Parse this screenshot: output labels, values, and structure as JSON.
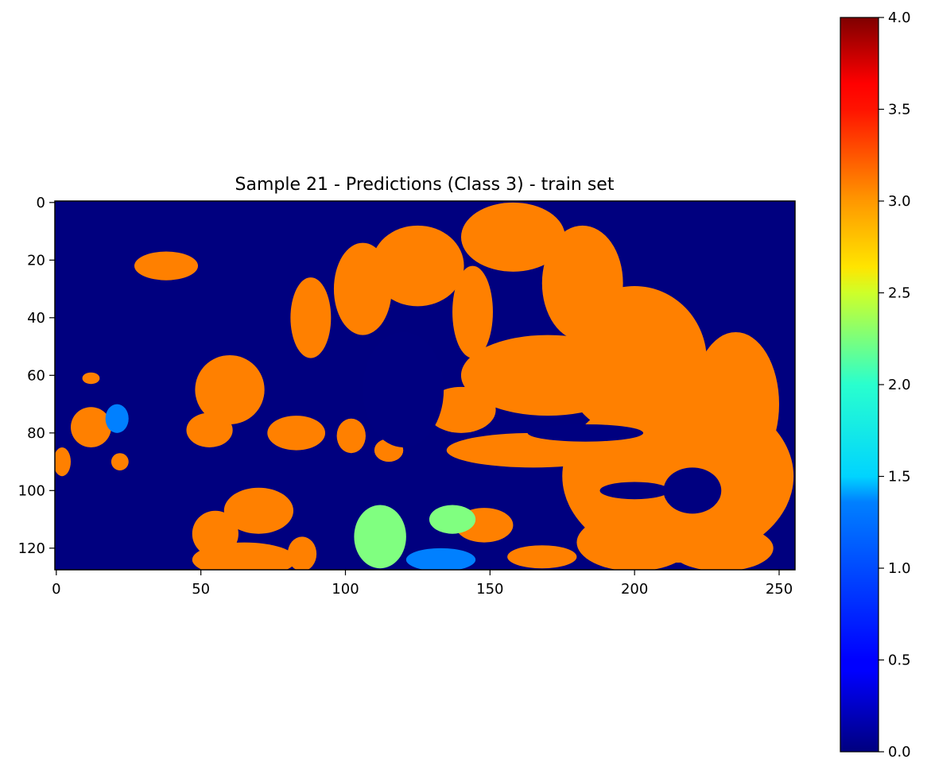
{
  "chart_data": [
    {
      "type": "heatmap",
      "title": "Sample 21 - Predictions (Class 3) - train set",
      "xlabel": "",
      "ylabel": "",
      "xlim": [
        -0.5,
        255.5
      ],
      "ylim": [
        127.5,
        -0.5
      ],
      "x_ticks": [
        0,
        50,
        100,
        150,
        200,
        250
      ],
      "y_ticks": [
        0,
        20,
        40,
        60,
        80,
        100,
        120
      ],
      "grid": false,
      "colormap": "jet",
      "value_range": [
        0,
        4
      ],
      "dominant_values": [
        0,
        3
      ],
      "regions": [
        {
          "shape": "ellipse",
          "value": 3,
          "cx": 12,
          "cy": 78,
          "rx": 7,
          "ry": 7
        },
        {
          "shape": "ellipse",
          "value": 1,
          "cx": 21,
          "cy": 75,
          "rx": 4,
          "ry": 5
        },
        {
          "shape": "ellipse",
          "value": 3,
          "cx": 12,
          "cy": 61,
          "rx": 3,
          "ry": 2
        },
        {
          "shape": "ellipse",
          "value": 3,
          "cx": 2,
          "cy": 90,
          "rx": 3,
          "ry": 5
        },
        {
          "shape": "ellipse",
          "value": 3,
          "cx": 22,
          "cy": 90,
          "rx": 3,
          "ry": 3
        },
        {
          "shape": "ellipse",
          "value": 3,
          "cx": 53,
          "cy": 79,
          "rx": 8,
          "ry": 6
        },
        {
          "shape": "ellipse",
          "value": 3,
          "cx": 60,
          "cy": 65,
          "rx": 12,
          "ry": 12
        },
        {
          "shape": "ellipse",
          "value": 3,
          "cx": 38,
          "cy": 22,
          "rx": 11,
          "ry": 5
        },
        {
          "shape": "ellipse",
          "value": 3,
          "cx": 83,
          "cy": 80,
          "rx": 10,
          "ry": 6
        },
        {
          "shape": "ellipse",
          "value": 3,
          "cx": 102,
          "cy": 81,
          "rx": 5,
          "ry": 6
        },
        {
          "shape": "ellipse",
          "value": 3,
          "cx": 115,
          "cy": 86,
          "rx": 5,
          "ry": 4
        },
        {
          "shape": "ellipse",
          "value": 3,
          "cx": 88,
          "cy": 40,
          "rx": 7,
          "ry": 14
        },
        {
          "shape": "ellipse",
          "value": 3,
          "cx": 106,
          "cy": 30,
          "rx": 10,
          "ry": 16
        },
        {
          "shape": "ellipse",
          "value": 3,
          "cx": 125,
          "cy": 22,
          "rx": 16,
          "ry": 14
        },
        {
          "shape": "ellipse",
          "value": 3,
          "cx": 144,
          "cy": 38,
          "rx": 7,
          "ry": 16
        },
        {
          "shape": "ellipse",
          "value": 3,
          "cx": 158,
          "cy": 12,
          "rx": 18,
          "ry": 12
        },
        {
          "shape": "ellipse",
          "value": 3,
          "cx": 182,
          "cy": 28,
          "rx": 14,
          "ry": 20
        },
        {
          "shape": "ellipse",
          "value": 3,
          "cx": 200,
          "cy": 55,
          "rx": 25,
          "ry": 26
        },
        {
          "shape": "ellipse",
          "value": 3,
          "cx": 170,
          "cy": 60,
          "rx": 30,
          "ry": 14
        },
        {
          "shape": "ellipse",
          "value": 3,
          "cx": 140,
          "cy": 72,
          "rx": 12,
          "ry": 8
        },
        {
          "shape": "ellipse",
          "value": 3,
          "cx": 165,
          "cy": 86,
          "rx": 30,
          "ry": 6
        },
        {
          "shape": "ellipse",
          "value": 3,
          "cx": 215,
          "cy": 95,
          "rx": 40,
          "ry": 30
        },
        {
          "shape": "ellipse",
          "value": 3,
          "cx": 235,
          "cy": 70,
          "rx": 15,
          "ry": 25
        },
        {
          "shape": "ellipse",
          "value": 3,
          "cx": 200,
          "cy": 118,
          "rx": 20,
          "ry": 10
        },
        {
          "shape": "ellipse",
          "value": 3,
          "cx": 230,
          "cy": 120,
          "rx": 18,
          "ry": 8
        },
        {
          "shape": "ellipse",
          "value": 3,
          "cx": 70,
          "cy": 107,
          "rx": 12,
          "ry": 8
        },
        {
          "shape": "ellipse",
          "value": 3,
          "cx": 55,
          "cy": 115,
          "rx": 8,
          "ry": 8
        },
        {
          "shape": "ellipse",
          "value": 3,
          "cx": 65,
          "cy": 124,
          "rx": 18,
          "ry": 6
        },
        {
          "shape": "ellipse",
          "value": 3,
          "cx": 85,
          "cy": 122,
          "rx": 5,
          "ry": 6
        },
        {
          "shape": "ellipse",
          "value": 3,
          "cx": 148,
          "cy": 112,
          "rx": 10,
          "ry": 6
        },
        {
          "shape": "ellipse",
          "value": 3,
          "cx": 168,
          "cy": 123,
          "rx": 12,
          "ry": 4
        },
        {
          "shape": "ellipse",
          "value": 2,
          "cx": 112,
          "cy": 116,
          "rx": 9,
          "ry": 11
        },
        {
          "shape": "ellipse",
          "value": 1,
          "cx": 133,
          "cy": 124,
          "rx": 12,
          "ry": 4
        },
        {
          "shape": "ellipse",
          "value": 2,
          "cx": 137,
          "cy": 110,
          "rx": 8,
          "ry": 5
        },
        {
          "shape": "ellipse",
          "value": 0,
          "cx": 120,
          "cy": 65,
          "rx": 14,
          "ry": 20
        },
        {
          "shape": "ellipse",
          "value": 0,
          "cx": 183,
          "cy": 80,
          "rx": 20,
          "ry": 3
        },
        {
          "shape": "ellipse",
          "value": 0,
          "cx": 220,
          "cy": 100,
          "rx": 10,
          "ry": 8
        },
        {
          "shape": "ellipse",
          "value": 0,
          "cx": 200,
          "cy": 100,
          "rx": 12,
          "ry": 3
        }
      ]
    },
    {
      "type": "colorbar",
      "colormap": "jet",
      "range": [
        0,
        4
      ],
      "ticks": [
        "0.0",
        "0.5",
        "1.0",
        "1.5",
        "2.0",
        "2.5",
        "3.0",
        "3.5",
        "4.0"
      ]
    }
  ]
}
